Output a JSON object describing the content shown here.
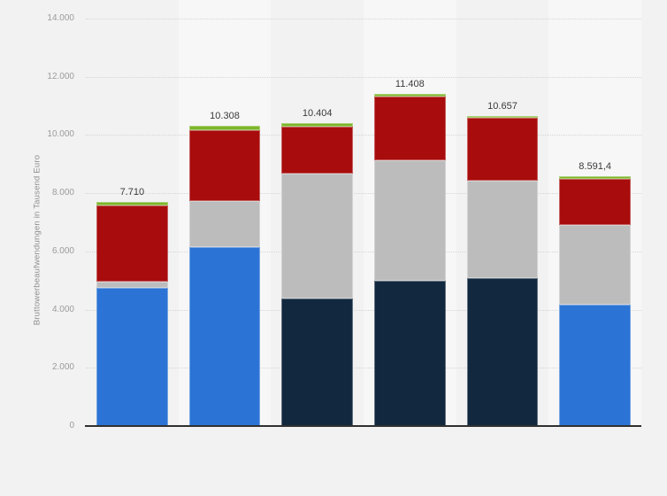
{
  "chart_data": {
    "type": "bar",
    "stacked": true,
    "title": "",
    "xlabel": "",
    "ylabel": "Bruttowerbeaufwendungen in Tausend Euro",
    "ylim": [
      0,
      14000
    ],
    "grid": "horizontal-dotted",
    "legend_position": "none",
    "x_tick_labels_visible": false,
    "y_ticks": [
      {
        "label": "0",
        "value": 0
      },
      {
        "label": "2.000",
        "value": 2000
      },
      {
        "label": "4.000",
        "value": 4000
      },
      {
        "label": "6.000",
        "value": 6000
      },
      {
        "label": "8.000",
        "value": 8000
      },
      {
        "label": "10.000",
        "value": 10000
      },
      {
        "label": "12.000",
        "value": 12000
      },
      {
        "label": "14.000",
        "value": 14000
      }
    ],
    "series": [
      {
        "name": "series-light-blue",
        "color": "#2b74d6",
        "values": [
          4745,
          6150,
          0,
          0,
          0,
          4160
        ]
      },
      {
        "name": "series-dark-navy",
        "color": "#12283e",
        "values": [
          0,
          0,
          4380,
          4990,
          5080,
          0
        ]
      },
      {
        "name": "series-gray",
        "color": "#bcbcbc",
        "values": [
          205,
          1578,
          4300,
          4140,
          3340,
          2750
        ]
      },
      {
        "name": "series-dark-red",
        "color": "#a80c0c",
        "values": [
          2620,
          2430,
          1604,
          2178,
          2157,
          1580
        ]
      },
      {
        "name": "series-green",
        "color": "#7db52b",
        "values": [
          140,
          150,
          120,
          100,
          80,
          101.4
        ]
      }
    ],
    "totals": [
      7710,
      10308,
      10404,
      11408,
      10657,
      8591.4
    ],
    "total_labels": [
      "7.710",
      "10.308",
      "10.404",
      "11.408",
      "10.657",
      "8.591,4"
    ],
    "colors": {
      "background": "#f2f2f2",
      "plot_band": "#f7f7f7",
      "gridline": "#d5d5d5",
      "axis_line": "#303030",
      "tick_text": "#9b9b9b",
      "axis_title_text": "#8e8e8e",
      "data_label_text": "#3a3a3a"
    }
  }
}
